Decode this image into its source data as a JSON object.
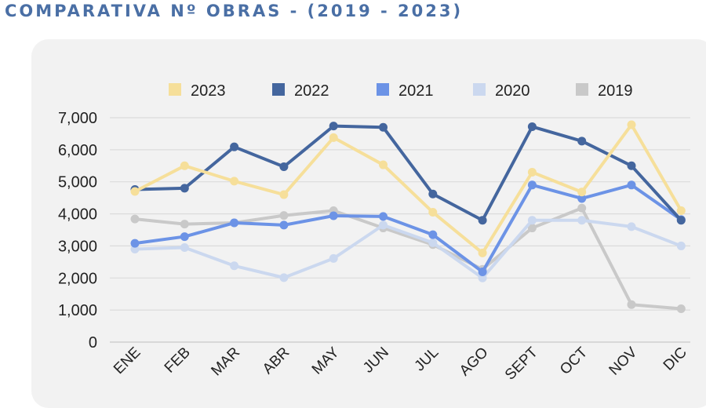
{
  "title": "COMPARATIVA Nº OBRAS - (2019 - 2023)",
  "chart_data": {
    "type": "line",
    "title": "COMPARATIVA Nº OBRAS - (2019 - 2023)",
    "categories": [
      "ENE",
      "FEB",
      "MAR",
      "ABR",
      "MAY",
      "JUN",
      "JUL",
      "AGO",
      "SEPT",
      "OCT",
      "NOV",
      "DIC"
    ],
    "ylim": [
      0,
      7000
    ],
    "yticks": [
      0,
      1000,
      2000,
      3000,
      4000,
      5000,
      6000,
      7000
    ],
    "ytick_labels": [
      "0",
      "1,000",
      "2,000",
      "3,000",
      "4,000",
      "5,000",
      "6,000",
      "7,000"
    ],
    "grid": true,
    "legend_position": "top",
    "series": [
      {
        "name": "2023",
        "color": "#f6df9a",
        "values": [
          4700,
          5500,
          5020,
          4600,
          6380,
          5530,
          4050,
          2780,
          5300,
          4680,
          6780,
          4100
        ]
      },
      {
        "name": "2022",
        "color": "#44669e",
        "values": [
          4760,
          4800,
          6090,
          5470,
          6740,
          6700,
          4620,
          3800,
          6720,
          6270,
          5500,
          3800
        ]
      },
      {
        "name": "2021",
        "color": "#6c93e6",
        "values": [
          3080,
          3290,
          3720,
          3650,
          3940,
          3920,
          3350,
          2190,
          4900,
          4480,
          4900,
          3820
        ]
      },
      {
        "name": "2020",
        "color": "#cbd8ef",
        "values": [
          2900,
          2950,
          2380,
          2010,
          2610,
          3650,
          3100,
          2000,
          3800,
          3800,
          3600,
          3000
        ]
      },
      {
        "name": "2019",
        "color": "#c9c9c9",
        "values": [
          3840,
          3680,
          3720,
          3950,
          4100,
          3560,
          3040,
          2270,
          3560,
          4180,
          1170,
          1040
        ]
      }
    ]
  }
}
